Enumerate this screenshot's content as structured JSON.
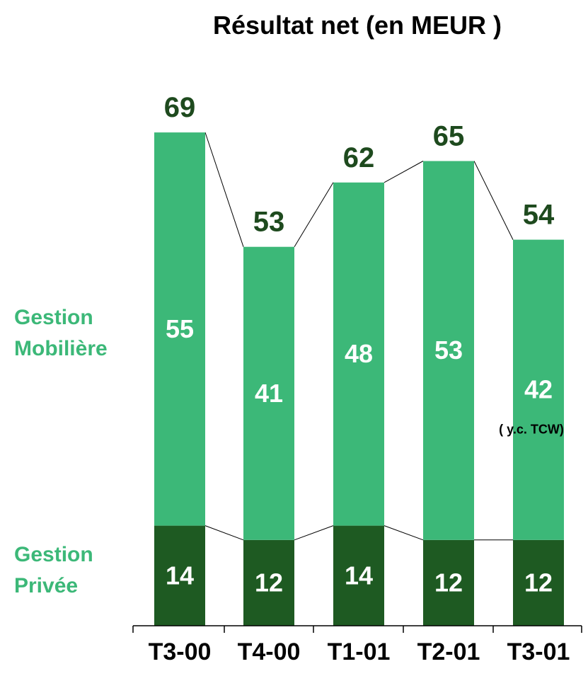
{
  "chart_data": {
    "type": "bar",
    "stacked": true,
    "title": "Résultat net (en MEUR )",
    "categories": [
      "T3-00",
      "T4-00",
      "T1-01",
      "T2-01",
      "T3-01"
    ],
    "series": [
      {
        "name": "Gestion Privée",
        "values": [
          14,
          12,
          14,
          12,
          12
        ],
        "color": "#1e5a22"
      },
      {
        "name": "Gestion Mobilière",
        "values": [
          55,
          41,
          48,
          53,
          42
        ],
        "color": "#3cb878"
      }
    ],
    "totals": [
      69,
      53,
      62,
      65,
      54
    ],
    "annotations": [
      {
        "category": "T3-01",
        "text": "( y.c. TCW)"
      }
    ],
    "total_label_color": "#1e4a1e",
    "legend_labels": {
      "mobiliere": [
        "Gestion",
        "Mobilière"
      ],
      "privee": [
        "Gestion",
        "Privée"
      ]
    },
    "connector_lines": true
  }
}
